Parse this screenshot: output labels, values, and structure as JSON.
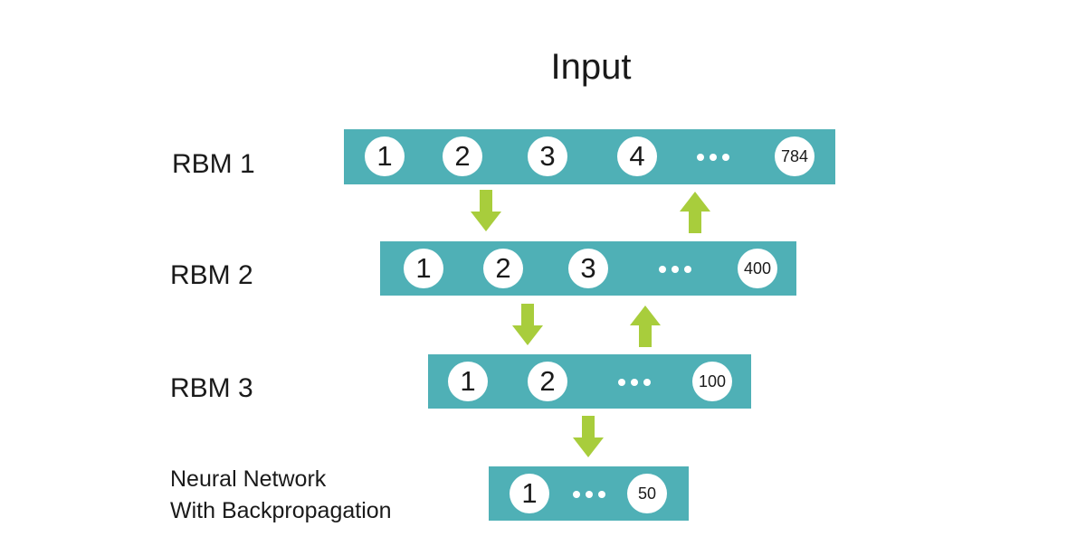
{
  "diagram": {
    "title": "Input",
    "rows": [
      {
        "label": "RBM 1",
        "nodes": [
          "1",
          "2",
          "3",
          "4",
          "784"
        ]
      },
      {
        "label": "RBM 2",
        "nodes": [
          "1",
          "2",
          "3",
          "400"
        ]
      },
      {
        "label": "RBM 3",
        "nodes": [
          "1",
          "2",
          "100"
        ]
      },
      {
        "label_line1": "Neural Network",
        "label_line2": "With Backpropagation",
        "nodes": [
          "1",
          "50"
        ]
      }
    ],
    "colors": {
      "layer_fill": "#4fb0b6",
      "arrow": "#a8cd3c",
      "node_fill": "#ffffff",
      "text": "#1a1a1a"
    }
  }
}
